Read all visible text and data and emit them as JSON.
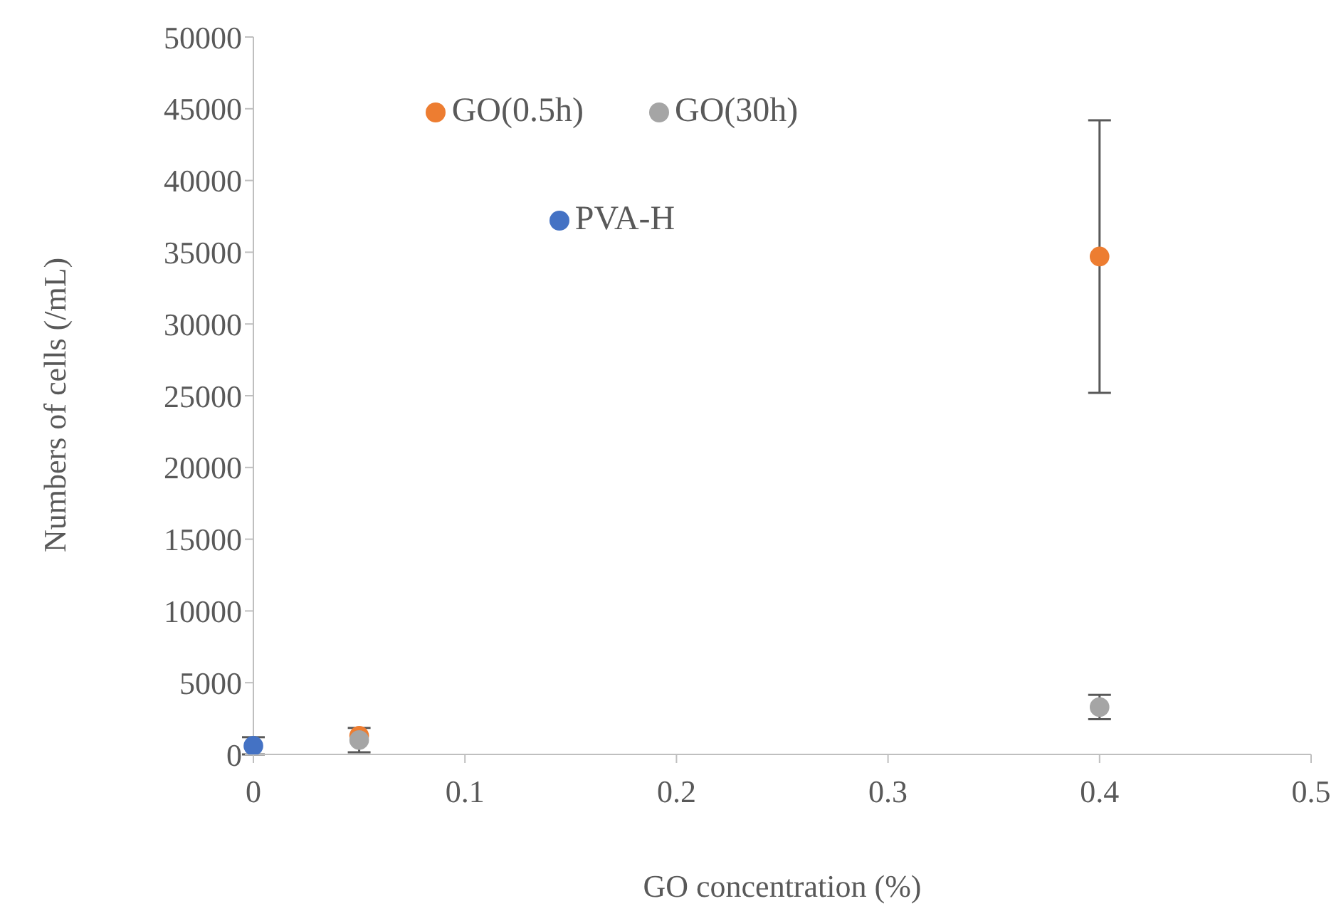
{
  "chart_data": {
    "type": "scatter",
    "xlabel": "GO concentration (%)",
    "ylabel": "Numbers of cells (/mL)",
    "xlim": [
      0,
      0.5
    ],
    "xticks": [
      0,
      0.1,
      0.2,
      0.3,
      0.4,
      0.5
    ],
    "ylim": [
      0,
      50000
    ],
    "yticks": [
      0,
      5000,
      10000,
      15000,
      20000,
      25000,
      30000,
      35000,
      40000,
      45000,
      50000
    ],
    "legend": "top left",
    "marker": "circle",
    "grid": false,
    "series": [
      {
        "name": "GO(0.5h)",
        "color": "#ed7d31",
        "x": [
          0.05,
          0.4
        ],
        "values": [
          1300,
          34700
        ],
        "errors": [
          null,
          9500
        ]
      },
      {
        "name": "GO(30h)",
        "color": "#a5a5a5",
        "x": [
          0.05,
          0.4
        ],
        "values": [
          1000,
          3300
        ],
        "errors": [
          850,
          850
        ]
      },
      {
        "name": "PVA-H",
        "color": "#4472c4",
        "x": [
          0
        ],
        "values": [
          600
        ],
        "errors": [
          600
        ]
      }
    ]
  }
}
